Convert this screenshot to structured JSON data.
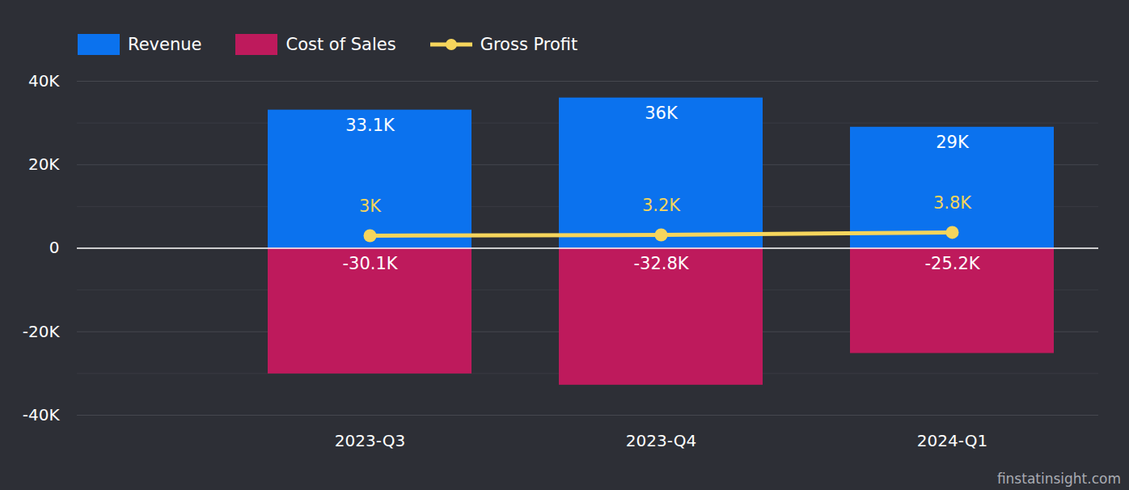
{
  "chart_data": {
    "type": "bar",
    "categories": [
      "2023-Q3",
      "2023-Q4",
      "2024-Q1"
    ],
    "series": [
      {
        "name": "Revenue",
        "type": "bar",
        "color": "#0b72ee",
        "values": [
          33100,
          36000,
          29000
        ],
        "value_labels": [
          "33.1K",
          "36K",
          "29K"
        ]
      },
      {
        "name": "Cost of Sales",
        "type": "bar",
        "color": "#be1a5c",
        "values": [
          -30100,
          -32800,
          -25200
        ],
        "value_labels": [
          "-30.1K",
          "-32.8K",
          "-25.2K"
        ]
      },
      {
        "name": "Gross Profit",
        "type": "line",
        "color": "#f6d55c",
        "marker": "circle",
        "values": [
          3000,
          3200,
          3800
        ],
        "value_labels": [
          "3K",
          "3.2K",
          "3.8K"
        ]
      }
    ],
    "ylim": [
      -40000,
      40000
    ],
    "yticks": [
      {
        "value": -40000,
        "label": "-40K"
      },
      {
        "value": -20000,
        "label": "-20K"
      },
      0,
      {
        "value": 20000,
        "label": "20K"
      },
      {
        "value": 40000,
        "label": "40K"
      }
    ],
    "grid": true,
    "legend": "top-left",
    "data_labels": true,
    "caption": "finstatinsight.com"
  }
}
